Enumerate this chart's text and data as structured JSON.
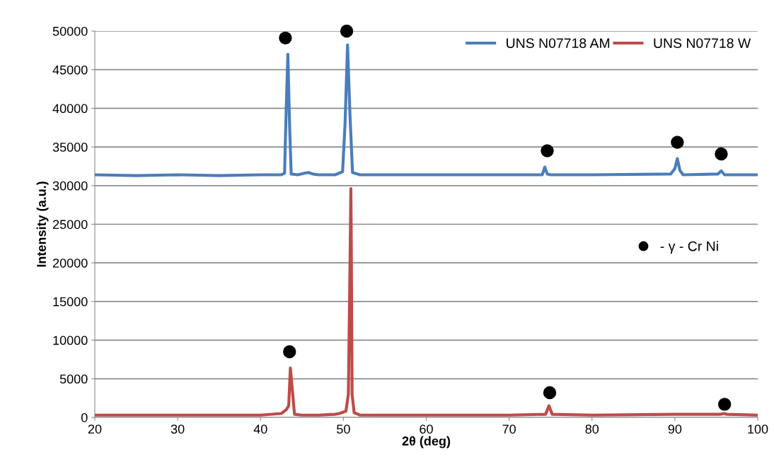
{
  "chart_data": {
    "type": "line",
    "xlabel": "2θ (deg)",
    "ylabel": "Intensity (a.u.)",
    "xlim": [
      20,
      100
    ],
    "ylim": [
      0,
      50000
    ],
    "xticks": [
      20,
      30,
      40,
      50,
      60,
      70,
      80,
      90,
      100
    ],
    "yticks": [
      0,
      5000,
      10000,
      15000,
      20000,
      25000,
      30000,
      35000,
      40000,
      45000,
      50000
    ],
    "grid": "y",
    "legend": "top right",
    "series": [
      {
        "name": "UNS N07718 AM",
        "color": "#4a7ebb",
        "x": [
          20,
          25,
          30,
          35,
          40,
          42.5,
          42.9,
          43.1,
          43.3,
          43.5,
          43.7,
          44.5,
          45.3,
          45.8,
          46.3,
          47,
          49,
          49.9,
          50.2,
          50.5,
          50.8,
          51.1,
          52,
          60,
          70,
          74,
          74.3,
          74.6,
          75,
          80,
          89.5,
          90,
          90.3,
          90.6,
          91,
          95.2,
          95.6,
          96,
          100
        ],
        "values": [
          31400,
          31300,
          31400,
          31300,
          31400,
          31400,
          31600,
          40000,
          47000,
          38000,
          31500,
          31400,
          31600,
          31700,
          31500,
          31400,
          31400,
          31800,
          38000,
          48200,
          39000,
          31700,
          31400,
          31400,
          31400,
          31400,
          32400,
          31500,
          31400,
          31400,
          31500,
          32200,
          33500,
          32000,
          31400,
          31500,
          31900,
          31400,
          31400
        ]
      },
      {
        "name": "UNS N07718 W",
        "color": "#be4b48",
        "x": [
          20,
          25,
          30,
          35,
          40,
          42.5,
          43.1,
          43.4,
          43.6,
          43.8,
          44.1,
          45,
          47,
          49,
          49.5,
          50.3,
          50.6,
          50.8,
          50.9,
          50.95,
          51.05,
          51.3,
          52,
          60,
          70,
          74.4,
          74.8,
          75.2,
          80,
          90,
          95.5,
          95.9,
          96.3,
          100
        ],
        "values": [
          300,
          300,
          300,
          300,
          300,
          500,
          1000,
          1500,
          6400,
          4000,
          400,
          300,
          300,
          400,
          500,
          800,
          3000,
          20000,
          29600,
          23000,
          3000,
          600,
          300,
          300,
          300,
          400,
          1500,
          400,
          300,
          400,
          400,
          500,
          400,
          300
        ]
      },
      {
        "name": "- γ - Cr Ni",
        "type": "scatter",
        "color": "#000000",
        "marker": "circle",
        "x": [
          43.0,
          50.4,
          74.6,
          90.3,
          95.6,
          43.5,
          74.9,
          96.0
        ],
        "values": [
          49100,
          50000,
          34500,
          35600,
          34100,
          8500,
          3200,
          1700
        ]
      }
    ]
  }
}
